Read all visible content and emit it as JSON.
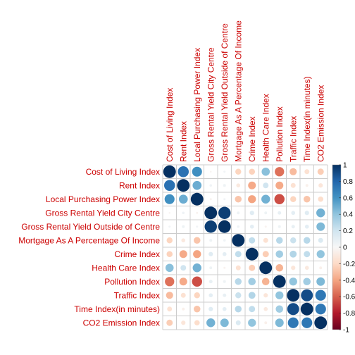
{
  "chart_data": {
    "type": "heatmap",
    "title": "",
    "variables": [
      "Cost of Living Index",
      "Rent Index",
      "Local Purchasing Power Index",
      "Gross Rental Yield City Centre",
      "Gross Rental Yield Outside of Centre",
      "Mortgage As A Percentage Of Income",
      "Crime Index",
      "Health Care Index",
      "Pollution Index",
      "Traffic Index",
      "Time Index(in minutes)",
      "CO2 Emission Index"
    ],
    "matrix": [
      [
        1.0,
        0.75,
        0.62,
        -0.02,
        0.03,
        -0.22,
        -0.23,
        0.42,
        -0.55,
        -0.32,
        -0.15,
        -0.25
      ],
      [
        0.75,
        1.0,
        0.5,
        0.04,
        0.05,
        -0.1,
        -0.38,
        0.2,
        -0.38,
        -0.15,
        -0.05,
        -0.12
      ],
      [
        0.62,
        0.5,
        1.0,
        -0.03,
        0.03,
        -0.28,
        -0.4,
        0.48,
        -0.65,
        -0.22,
        -0.28,
        -0.18
      ],
      [
        -0.02,
        0.04,
        -0.03,
        1.0,
        0.95,
        0.05,
        0.12,
        0.05,
        0.08,
        0.1,
        0.12,
        0.48
      ],
      [
        0.03,
        0.05,
        0.03,
        0.95,
        1.0,
        0.04,
        0.1,
        -0.03,
        0.05,
        0.08,
        0.1,
        0.45
      ],
      [
        -0.22,
        -0.1,
        -0.28,
        0.05,
        0.04,
        1.0,
        0.25,
        -0.15,
        0.28,
        0.22,
        0.28,
        0.15
      ],
      [
        -0.23,
        -0.38,
        -0.4,
        0.12,
        0.1,
        0.25,
        1.0,
        -0.25,
        0.35,
        0.3,
        0.25,
        0.4
      ],
      [
        0.42,
        0.2,
        0.48,
        0.05,
        -0.03,
        -0.15,
        -0.25,
        1.0,
        -0.35,
        -0.12,
        -0.1,
        -0.05
      ],
      [
        -0.55,
        -0.38,
        -0.65,
        0.08,
        0.05,
        0.28,
        0.35,
        -0.35,
        1.0,
        0.4,
        0.35,
        0.45
      ],
      [
        -0.32,
        -0.15,
        -0.22,
        0.1,
        0.08,
        0.22,
        0.3,
        -0.12,
        0.4,
        1.0,
        0.9,
        0.72
      ],
      [
        -0.15,
        -0.05,
        -0.28,
        0.12,
        0.1,
        0.28,
        0.25,
        -0.1,
        0.35,
        0.9,
        1.0,
        0.72
      ],
      [
        -0.25,
        -0.12,
        -0.18,
        0.48,
        0.45,
        0.15,
        0.4,
        -0.05,
        0.45,
        0.72,
        0.72,
        1.0
      ]
    ],
    "colorbar": {
      "ticks": [
        "1",
        "0.8",
        "0.6",
        "0.4",
        "0.2",
        "0",
        "-0.2",
        "-0.4",
        "-0.6",
        "-0.8",
        "-1"
      ],
      "range": [
        -1,
        1
      ]
    },
    "colors": {
      "label": "#cc0000",
      "grid": "#cccccc",
      "negative_end": "#67001f",
      "neutral": "#f7f7f7",
      "positive_end": "#053061"
    }
  }
}
